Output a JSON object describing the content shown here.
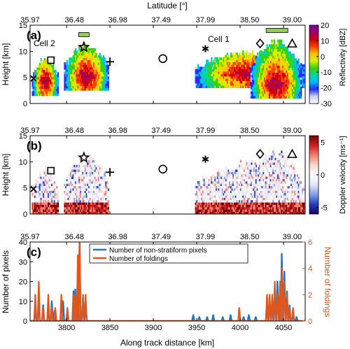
{
  "figure": {
    "top_axis_label": "Latitude [°]",
    "bottom_axis_label": "Along track distance [km]"
  },
  "chart_data": [
    {
      "panel": "(a)",
      "type": "heatmap",
      "xlabel": "",
      "ylabel": "Height [km]",
      "xlim": [
        3758,
        4075
      ],
      "ylim": [
        0,
        15
      ],
      "xticks": [
        3800,
        3850,
        3900,
        3950,
        4000,
        4050
      ],
      "xticklabels": [
        "",
        "",
        "",
        "",
        "",
        ""
      ],
      "yticks": [
        0,
        5,
        10,
        15
      ],
      "top_xticks": [
        3758,
        3809,
        3859,
        3909,
        3960,
        4011,
        4060
      ],
      "top_xticklabels": [
        "35.97",
        "36.48",
        "36.98",
        "37.49",
        "37.99",
        "38.50",
        "39.00"
      ],
      "colorbar": {
        "label": "Reflectivity [dBZ]",
        "ticks": [
          20,
          10,
          0,
          -10,
          -20,
          -30
        ],
        "range": [
          -30,
          20
        ],
        "colors": [
          "#ffffff",
          "#c8d0ff",
          "#2a2aff",
          "#00b8ff",
          "#00d8a0",
          "#3cd000",
          "#d8f000",
          "#ffc000",
          "#ff4000",
          "#d00000",
          "#a00070",
          "#7a00a0"
        ]
      },
      "annotations": [
        {
          "text": "Cell 2",
          "x": 3768,
          "y": 12.5
        },
        {
          "text": "Cell 1",
          "x": 3965,
          "y": 12.8
        }
      ],
      "markers": [
        {
          "symbol": "square",
          "x": 3782,
          "y": 8.3
        },
        {
          "symbol": "star",
          "x": 3820,
          "y": 10.8
        },
        {
          "symbol": "plus",
          "x": 3850,
          "y": 8.0
        },
        {
          "symbol": "circle",
          "x": 3911,
          "y": 8.6
        },
        {
          "symbol": "asterisk",
          "x": 3960,
          "y": 10.5
        },
        {
          "symbol": "diamond",
          "x": 4023,
          "y": 11.5
        },
        {
          "symbol": "triangle",
          "x": 4060,
          "y": 11.5
        },
        {
          "symbol": "x",
          "x": 3762,
          "y": 4.8
        }
      ],
      "bars": [
        {
          "x0": 3814,
          "x1": 3826,
          "y": 13.2,
          "color": "#90d050"
        },
        {
          "x0": 4030,
          "x1": 4055,
          "y": 14.0,
          "color": "#90d050"
        }
      ]
    },
    {
      "panel": "(b)",
      "type": "heatmap",
      "xlabel": "",
      "ylabel": "Height [km]",
      "xlim": [
        3758,
        4075
      ],
      "ylim": [
        0,
        15
      ],
      "xticks": [
        3800,
        3850,
        3900,
        3950,
        4000,
        4050
      ],
      "xticklabels": [
        "",
        "",
        "",
        "",
        "",
        ""
      ],
      "yticks": [
        0,
        5,
        10,
        15
      ],
      "top_xticks": [
        3758,
        3809,
        3859,
        3909,
        3960,
        4011,
        4060
      ],
      "top_xticklabels": [
        "35.97",
        "36.48",
        "36.98",
        "37.49",
        "37.99",
        "38.50",
        "39.00"
      ],
      "colorbar": {
        "label": "Doppler velocity [ms⁻¹]",
        "ticks": [
          5,
          0,
          -5
        ],
        "range": [
          -6,
          6
        ],
        "colors": [
          "#1a0060",
          "#2040c0",
          "#80a0e8",
          "#e6e6ff",
          "#ffffff",
          "#ffd8d0",
          "#f08070",
          "#d02020",
          "#7a0000"
        ]
      },
      "markers": [
        {
          "symbol": "square",
          "x": 3782,
          "y": 8.3
        },
        {
          "symbol": "star",
          "x": 3820,
          "y": 10.8
        },
        {
          "symbol": "plus",
          "x": 3850,
          "y": 8.0
        },
        {
          "symbol": "circle",
          "x": 3911,
          "y": 8.6
        },
        {
          "symbol": "asterisk",
          "x": 3960,
          "y": 10.5
        },
        {
          "symbol": "diamond",
          "x": 4023,
          "y": 11.5
        },
        {
          "symbol": "triangle",
          "x": 4060,
          "y": 11.5
        },
        {
          "symbol": "x",
          "x": 3762,
          "y": 4.8
        }
      ]
    },
    {
      "panel": "(c)",
      "type": "line",
      "xlabel": "Along track distance [km]",
      "ylabel": "Number of pixels",
      "y2label": "Number of foldings",
      "xlim": [
        3758,
        4075
      ],
      "ylim": [
        0,
        40
      ],
      "y2lim": [
        0,
        6
      ],
      "xticks": [
        3800,
        3850,
        3900,
        3950,
        4000,
        4050
      ],
      "xticklabels": [
        "3800",
        "3850",
        "3900",
        "3950",
        "4000",
        "4050"
      ],
      "yticks": [
        0,
        10,
        20,
        30,
        40
      ],
      "y2ticks": [
        0,
        2,
        4,
        6
      ],
      "top_xticks": [
        3758,
        3809,
        3859,
        3909,
        3960,
        4011,
        4060
      ],
      "top_xticklabels": [
        "35.97",
        "36.48",
        "36.98",
        "37.49",
        "37.99",
        "38.50",
        "39.00"
      ],
      "legend_position": "top-center",
      "series": [
        {
          "name": "Number of non-stratiform pixels",
          "axis": "left",
          "color": "#1f77c4",
          "peaks": [
            [
              3764,
              8
            ],
            [
              3768,
              11
            ],
            [
              3773,
              8
            ],
            [
              3779,
              6
            ],
            [
              3783,
              10
            ],
            [
              3786,
              5
            ],
            [
              3796,
              10
            ],
            [
              3801,
              4
            ],
            [
              3808,
              15
            ],
            [
              3810,
              16
            ],
            [
              3813,
              25
            ],
            [
              3815,
              40
            ],
            [
              3819,
              12
            ],
            [
              3822,
              10
            ],
            [
              3946,
              3
            ],
            [
              3953,
              2
            ],
            [
              3962,
              2
            ],
            [
              3969,
              3
            ],
            [
              3980,
              2
            ],
            [
              3989,
              3
            ],
            [
              4004,
              2
            ],
            [
              4010,
              3
            ],
            [
              4018,
              2
            ],
            [
              4031,
              10
            ],
            [
              4034,
              12
            ],
            [
              4037,
              10
            ],
            [
              4040,
              15
            ],
            [
              4043,
              20
            ],
            [
              4046,
              18
            ],
            [
              4048,
              34
            ],
            [
              4051,
              25
            ],
            [
              4054,
              15
            ],
            [
              4057,
              8
            ],
            [
              4061,
              5
            ],
            [
              4065,
              2
            ]
          ]
        },
        {
          "name": "Number of foldings",
          "axis": "right",
          "color": "#e0561c",
          "peaks": [
            [
              3764,
              2
            ],
            [
              3768,
              3
            ],
            [
              3773,
              1
            ],
            [
              3779,
              2
            ],
            [
              3783,
              1
            ],
            [
              3787,
              1
            ],
            [
              3794,
              2
            ],
            [
              3801,
              1
            ],
            [
              3808,
              2
            ],
            [
              3810,
              2
            ],
            [
              3813,
              5
            ],
            [
              3815,
              6
            ],
            [
              3819,
              2
            ],
            [
              3822,
              2
            ],
            [
              3999,
              1
            ],
            [
              4031,
              2
            ],
            [
              4034,
              2
            ],
            [
              4037,
              2
            ],
            [
              4040,
              3
            ],
            [
              4043,
              2
            ],
            [
              4046,
              3
            ],
            [
              4048,
              4
            ],
            [
              4051,
              3
            ],
            [
              4054,
              2
            ],
            [
              4057,
              1
            ],
            [
              4061,
              1
            ]
          ]
        }
      ]
    }
  ]
}
